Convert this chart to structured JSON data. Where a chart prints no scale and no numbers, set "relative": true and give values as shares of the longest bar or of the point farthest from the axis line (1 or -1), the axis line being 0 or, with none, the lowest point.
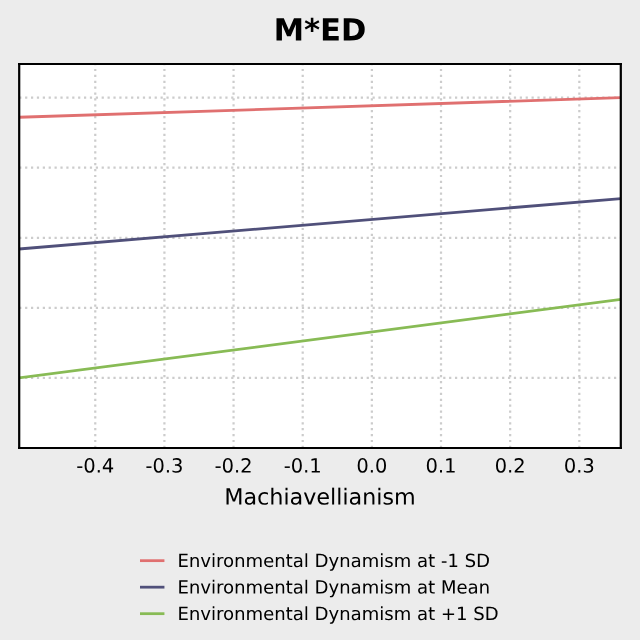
{
  "chart_data": {
    "type": "line",
    "title": "M*ED",
    "xlabel": "Machiavellianism",
    "relative": true,
    "x": [
      -0.51,
      0.36
    ],
    "xlim": [
      -0.51,
      0.36
    ],
    "xticks": [
      -0.4,
      -0.3,
      -0.2,
      -0.1,
      {
        "value": 0,
        "label": "0.0"
      },
      0.1,
      0.2,
      0.3
    ],
    "series": [
      {
        "name": "Environmental Dynamism at -1 SD",
        "color": "#e07070",
        "values": [
          0.93,
          1
        ]
      },
      {
        "name": "Environmental Dynamism at Mean",
        "color": "#50507a",
        "values": [
          0.46,
          0.64
        ]
      },
      {
        "name": "Environmental Dynamism at +1 SD",
        "color": "#88bb55",
        "values": [
          0,
          0.28
        ]
      }
    ],
    "grid": true,
    "legend": "bottom",
    "tick_labels": "x",
    "marker": "none",
    "line_style": "solid"
  }
}
